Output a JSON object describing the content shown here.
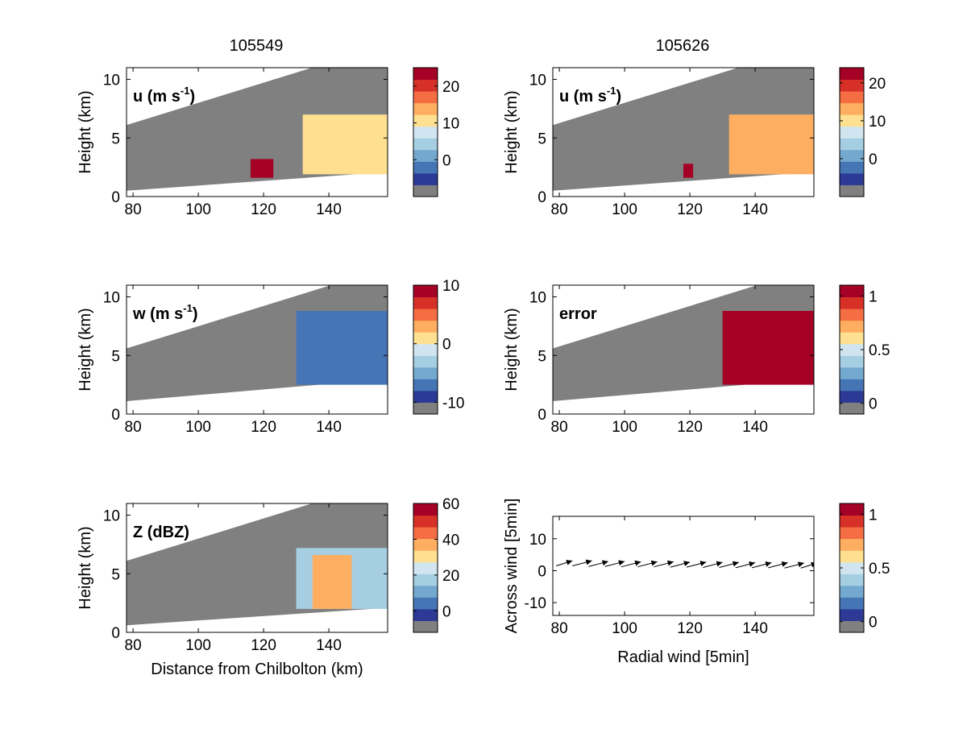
{
  "figure": {
    "column_titles": [
      "105549",
      "105626"
    ]
  },
  "colors": {
    "mask": "#808080",
    "palette": [
      "#2c3995",
      "#4575b4",
      "#74a9cf",
      "#a6cee3",
      "#d1e5f0",
      "#fee090",
      "#fdae61",
      "#f46d43",
      "#d73027",
      "#a50026"
    ],
    "frame": "#000000"
  },
  "chart_data": [
    {
      "id": "u1",
      "type": "heatmap",
      "title": "",
      "annotation_main": "u (m s",
      "annotation_sup": "-1",
      "annotation_end": ")",
      "ylabel": "Height (km)",
      "xlabel": "",
      "xlim": [
        78,
        158
      ],
      "ylim": [
        0,
        11
      ],
      "xticks": [
        80,
        100,
        120,
        140
      ],
      "yticks": [
        0,
        5,
        10
      ],
      "beam": {
        "bottom": [
          0.5,
          2.1
        ],
        "top": [
          6.1,
          13.0
        ]
      },
      "echo": [
        {
          "x0": 116,
          "x1": 123,
          "y0": 1.6,
          "y1": 3.2,
          "value": 24
        },
        {
          "x0": 132,
          "x1": 158,
          "y0": 1.9,
          "y1": 7.0,
          "value": 12
        }
      ],
      "colorbar": {
        "vmin": -10,
        "vmax": 25,
        "ticks": [
          0,
          10,
          20
        ],
        "tick_labels": [
          "0",
          "10",
          "20"
        ]
      }
    },
    {
      "id": "u2",
      "type": "heatmap",
      "title": "",
      "annotation_main": "u (m s",
      "annotation_sup": "-1",
      "annotation_end": ")",
      "ylabel": "Height (km)",
      "xlabel": "",
      "xlim": [
        78,
        158
      ],
      "ylim": [
        0,
        11
      ],
      "xticks": [
        80,
        100,
        120,
        140
      ],
      "yticks": [
        0,
        5,
        10
      ],
      "beam": {
        "bottom": [
          0.5,
          2.1
        ],
        "top": [
          6.1,
          13.0
        ]
      },
      "echo": [
        {
          "x0": 118,
          "x1": 121,
          "y0": 1.6,
          "y1": 2.8,
          "value": 24
        },
        {
          "x0": 132,
          "x1": 158,
          "y0": 1.9,
          "y1": 7.0,
          "value": 12
        }
      ],
      "colorbar": {
        "vmin": -10,
        "vmax": 24,
        "ticks": [
          0,
          10,
          20
        ],
        "tick_labels": [
          "0",
          "10",
          "20"
        ]
      }
    },
    {
      "id": "w1",
      "type": "heatmap",
      "title": "",
      "annotation_main": "w (m s",
      "annotation_sup": "-1",
      "annotation_end": ")",
      "ylabel": "Height (km)",
      "xlabel": "",
      "xlim": [
        78,
        158
      ],
      "ylim": [
        0,
        11
      ],
      "xticks": [
        80,
        100,
        120,
        140
      ],
      "yticks": [
        0,
        5,
        10
      ],
      "beam": {
        "bottom": [
          1.1,
          3.0
        ],
        "top": [
          5.6,
          12.5
        ]
      },
      "echo": [
        {
          "x0": 130,
          "x1": 158,
          "y0": 2.5,
          "y1": 8.8,
          "value": -8
        }
      ],
      "colorbar": {
        "vmin": -12,
        "vmax": 10,
        "ticks": [
          -10,
          0,
          10
        ],
        "tick_labels": [
          "-10",
          "0",
          "10"
        ]
      }
    },
    {
      "id": "err",
      "type": "heatmap",
      "title": "",
      "annotation_main": "error",
      "annotation_sup": "",
      "annotation_end": "",
      "ylabel": "Height (km)",
      "xlabel": "",
      "xlim": [
        78,
        158
      ],
      "ylim": [
        0,
        11
      ],
      "xticks": [
        80,
        100,
        120,
        140
      ],
      "yticks": [
        0,
        5,
        10
      ],
      "beam": {
        "bottom": [
          1.1,
          3.0
        ],
        "top": [
          5.6,
          12.5
        ]
      },
      "echo": [
        {
          "x0": 130,
          "x1": 158,
          "y0": 2.5,
          "y1": 8.8,
          "value": 1
        }
      ],
      "colorbar": {
        "vmin": -0.1,
        "vmax": 1.1,
        "ticks": [
          0,
          0.5,
          1
        ],
        "tick_labels": [
          "0",
          "0.5",
          "1"
        ]
      }
    },
    {
      "id": "z1",
      "type": "heatmap",
      "title": "",
      "annotation_main": "Z (dBZ)",
      "annotation_sup": "",
      "annotation_end": "",
      "ylabel": "Height (km)",
      "xlabel": "Distance from Chilbolton (km)",
      "xlim": [
        78,
        158
      ],
      "ylim": [
        0,
        11
      ],
      "xticks": [
        80,
        100,
        120,
        140
      ],
      "yticks": [
        0,
        5,
        10
      ],
      "beam": {
        "bottom": [
          0.6,
          2.1
        ],
        "top": [
          6.1,
          13.0
        ]
      },
      "echo": [
        {
          "x0": 130,
          "x1": 158,
          "y0": 2.0,
          "y1": 7.2,
          "value": 15
        },
        {
          "x0": 135,
          "x1": 147,
          "y0": 2.0,
          "y1": 6.6,
          "value": 40
        }
      ],
      "colorbar": {
        "vmin": -12,
        "vmax": 60,
        "ticks": [
          0,
          20,
          40,
          60
        ],
        "tick_labels": [
          "0",
          "20",
          "40",
          "60"
        ]
      }
    },
    {
      "id": "quiver",
      "type": "scatter",
      "title": "",
      "annotation_main": "",
      "annotation_sup": "",
      "annotation_end": "",
      "ylabel": "Across wind [5min]",
      "xlabel": "Radial wind [5min]",
      "xlim": [
        78,
        158
      ],
      "ylim": [
        -14,
        17
      ],
      "xticks": [
        80,
        100,
        120,
        140
      ],
      "yticks": [
        -10,
        0,
        10
      ],
      "tick_labels_y": [
        "-10",
        "0",
        "10"
      ],
      "arrows": [
        {
          "x": 79,
          "y": 1.5,
          "u": 5,
          "v": 1.6
        },
        {
          "x": 84,
          "y": 1.5,
          "u": 6,
          "v": 1.6
        },
        {
          "x": 89,
          "y": 1.3,
          "u": 6,
          "v": 1.6
        },
        {
          "x": 94,
          "y": 1.3,
          "u": 6,
          "v": 1.6
        },
        {
          "x": 99,
          "y": 1.2,
          "u": 6,
          "v": 1.6
        },
        {
          "x": 104,
          "y": 1.2,
          "u": 6,
          "v": 1.6
        },
        {
          "x": 109,
          "y": 1.2,
          "u": 6,
          "v": 1.6
        },
        {
          "x": 114,
          "y": 1.1,
          "u": 6,
          "v": 1.6
        },
        {
          "x": 119,
          "y": 1.1,
          "u": 6,
          "v": 1.6
        },
        {
          "x": 124,
          "y": 1.0,
          "u": 6,
          "v": 1.6
        },
        {
          "x": 129,
          "y": 1.0,
          "u": 6,
          "v": 1.6
        },
        {
          "x": 134,
          "y": 0.9,
          "u": 6,
          "v": 1.6
        },
        {
          "x": 139,
          "y": 0.9,
          "u": 6,
          "v": 1.6
        },
        {
          "x": 144,
          "y": 0.9,
          "u": 6,
          "v": 1.6
        },
        {
          "x": 149,
          "y": 0.8,
          "u": 6,
          "v": 1.6
        },
        {
          "x": 154,
          "y": 0.8,
          "u": 5,
          "v": 1.6
        }
      ],
      "colorbar": {
        "vmin": -0.1,
        "vmax": 1.1,
        "ticks": [
          0,
          0.5,
          1
        ],
        "tick_labels": [
          "0",
          "0.5",
          "1"
        ]
      }
    }
  ]
}
